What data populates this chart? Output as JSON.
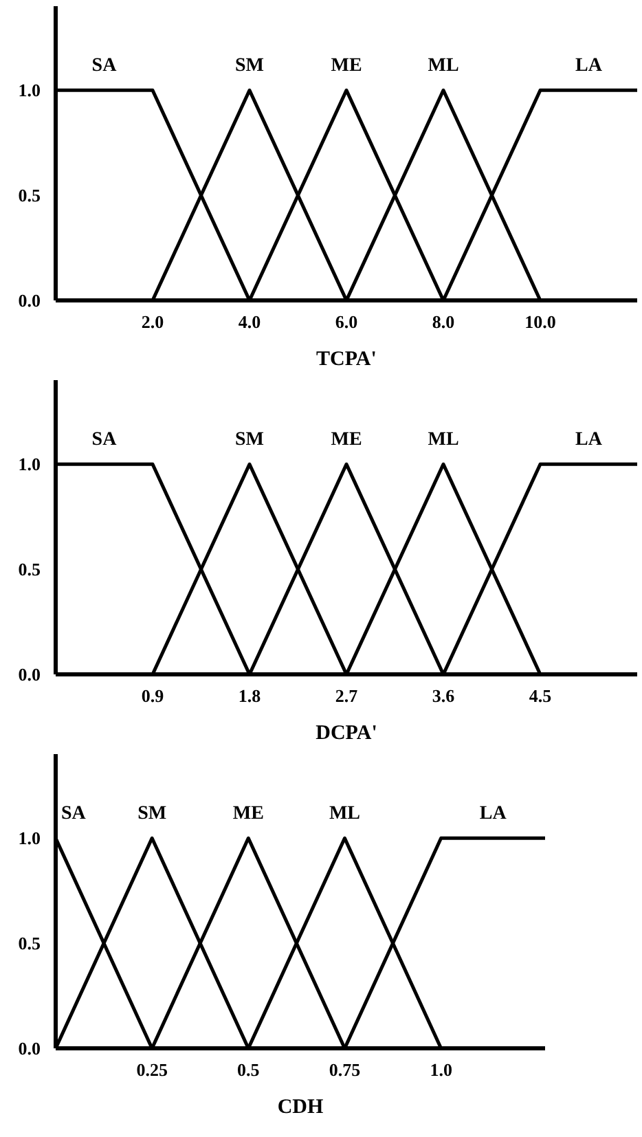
{
  "chart_data": [
    {
      "type": "line",
      "xlabel": "TCPA'",
      "xlim": [
        0,
        12
      ],
      "ylim": [
        0,
        1.4
      ],
      "xticks": [
        {
          "value": 2,
          "label": "2.0"
        },
        {
          "value": 4,
          "label": "4.0"
        },
        {
          "value": 6,
          "label": "6.0"
        },
        {
          "value": 8,
          "label": "8.0"
        },
        {
          "value": 10,
          "label": "10.0"
        }
      ],
      "yticks": [
        {
          "value": 0,
          "label": "0.0"
        },
        {
          "value": 0.5,
          "label": "0.5"
        },
        {
          "value": 1,
          "label": "1.0"
        }
      ],
      "grid": false,
      "legend": false,
      "marker": "none",
      "line_style": "solid",
      "series": [
        {
          "name": "SA",
          "color": "#000000",
          "x": [
            0,
            2,
            4
          ],
          "values": [
            1,
            1,
            0
          ]
        },
        {
          "name": "SM",
          "color": "#000000",
          "x": [
            2,
            4,
            6
          ],
          "values": [
            0,
            1,
            0
          ]
        },
        {
          "name": "ME",
          "color": "#000000",
          "x": [
            4,
            6,
            8
          ],
          "values": [
            0,
            1,
            0
          ]
        },
        {
          "name": "ML",
          "color": "#000000",
          "x": [
            6,
            8,
            10
          ],
          "values": [
            0,
            1,
            0
          ]
        },
        {
          "name": "LA",
          "color": "#000000",
          "x": [
            8,
            10,
            12
          ],
          "values": [
            0,
            1,
            1
          ]
        }
      ]
    },
    {
      "type": "line",
      "xlabel": "DCPA'",
      "xlim": [
        0,
        5.4
      ],
      "ylim": [
        0,
        1.4
      ],
      "xticks": [
        0.9,
        1.8,
        2.7,
        3.6,
        4.5
      ],
      "yticks": [
        {
          "value": 0,
          "label": "0.0"
        },
        {
          "value": 0.5,
          "label": "0.5"
        },
        {
          "value": 1,
          "label": "1.0"
        }
      ],
      "grid": false,
      "legend": false,
      "marker": "none",
      "line_style": "solid",
      "series": [
        {
          "name": "SA",
          "color": "#000000",
          "x": [
            0,
            0.9,
            1.8
          ],
          "values": [
            1,
            1,
            0
          ]
        },
        {
          "name": "SM",
          "color": "#000000",
          "x": [
            0.9,
            1.8,
            2.7
          ],
          "values": [
            0,
            1,
            0
          ]
        },
        {
          "name": "ME",
          "color": "#000000",
          "x": [
            1.8,
            2.7,
            3.6
          ],
          "values": [
            0,
            1,
            0
          ]
        },
        {
          "name": "ML",
          "color": "#000000",
          "x": [
            2.7,
            3.6,
            4.5
          ],
          "values": [
            0,
            1,
            0
          ]
        },
        {
          "name": "LA",
          "color": "#000000",
          "x": [
            3.6,
            4.5,
            5.4
          ],
          "values": [
            0,
            1,
            1
          ]
        }
      ]
    },
    {
      "type": "line",
      "xlabel": "CDH",
      "xlim": [
        0,
        1.27
      ],
      "ylim": [
        0,
        1.4
      ],
      "xticks": [
        0.25,
        0.5,
        0.75,
        {
          "value": 1,
          "label": "1.0"
        }
      ],
      "yticks": [
        {
          "value": 0,
          "label": "0.0"
        },
        {
          "value": 0.5,
          "label": "0.5"
        },
        {
          "value": 1,
          "label": "1.0"
        }
      ],
      "grid": false,
      "legend": false,
      "marker": "none",
      "line_style": "solid",
      "series": [
        {
          "name": "SA",
          "color": "#000000",
          "x": [
            0,
            0.25
          ],
          "values": [
            1,
            0
          ]
        },
        {
          "name": "SM",
          "color": "#000000",
          "x": [
            0,
            0.25,
            0.5
          ],
          "values": [
            0,
            1,
            0
          ]
        },
        {
          "name": "ME",
          "color": "#000000",
          "x": [
            0.25,
            0.5,
            0.75
          ],
          "values": [
            0,
            1,
            0
          ]
        },
        {
          "name": "ML",
          "color": "#000000",
          "x": [
            0.5,
            0.75,
            1.0
          ],
          "values": [
            0,
            1,
            0
          ]
        },
        {
          "name": "LA",
          "color": "#000000",
          "x": [
            0.75,
            1.0,
            1.27
          ],
          "values": [
            0,
            1,
            1
          ]
        }
      ]
    }
  ]
}
